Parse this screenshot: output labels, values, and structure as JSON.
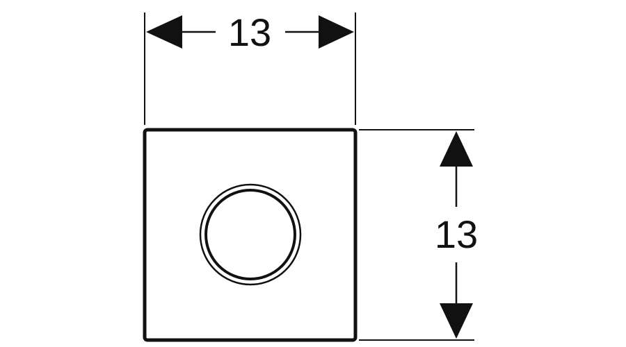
{
  "dimensions": {
    "width_label": "13",
    "height_label": "13"
  },
  "colors": {
    "line": "#111111",
    "background": "#ffffff"
  }
}
